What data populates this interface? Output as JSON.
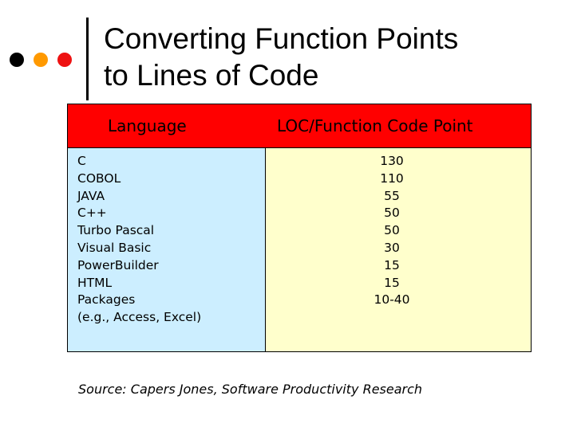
{
  "slide": {
    "title_line1": "Converting Function Points",
    "title_line2": "to Lines of Code",
    "source": "Source: Capers Jones, Software Productivity Research"
  },
  "decor": {
    "dot_colors": [
      "#000000",
      "#ff9900",
      "#ee1111"
    ],
    "header_color": "#ff0000",
    "left_column_color": "#cceeff",
    "right_column_color": "#ffffcc"
  },
  "table": {
    "headers": {
      "language": "Language",
      "loc": "LOC/Function Code Point"
    },
    "languages": [
      "C",
      "COBOL",
      "JAVA",
      "C++",
      "Turbo Pascal",
      "Visual Basic",
      "PowerBuilder",
      "HTML",
      "Packages",
      "(e.g., Access, Excel)"
    ],
    "values": [
      "130",
      "110",
      "55",
      "50",
      "50",
      "30",
      "15",
      "15",
      "10-40"
    ]
  }
}
